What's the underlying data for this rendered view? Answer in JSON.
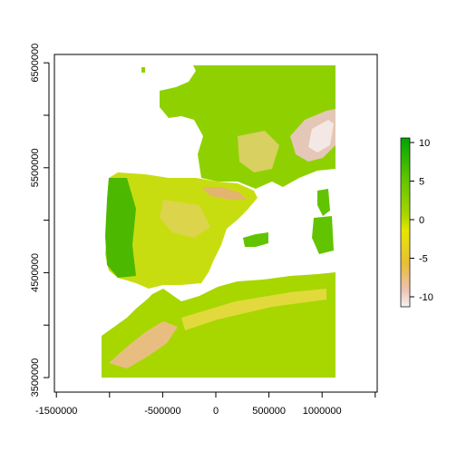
{
  "map": {
    "x_axis": {
      "ticks": [
        -1500000,
        -1000000,
        -500000,
        0,
        500000,
        1000000,
        1500000
      ],
      "labels": [
        "-1500000",
        "",
        "-500000",
        "0",
        "500000",
        "1000000",
        ""
      ]
    },
    "y_axis": {
      "ticks": [
        3500000,
        4000000,
        4500000,
        5000000,
        5500000,
        6000000,
        6500000
      ],
      "labels": [
        "3500000",
        "",
        "4500000",
        "",
        "5500000",
        "",
        "6500000"
      ]
    }
  },
  "legend": {
    "ticks": [
      10,
      5,
      0,
      -5,
      -10
    ],
    "labels": [
      "10",
      "5",
      "0",
      "-5",
      "-10"
    ],
    "colors": [
      "#F2F2F2",
      "#EEC2B3",
      "#E9BD3A",
      "#E6E600",
      "#A6D600",
      "#63C600",
      "#00A600"
    ]
  }
}
